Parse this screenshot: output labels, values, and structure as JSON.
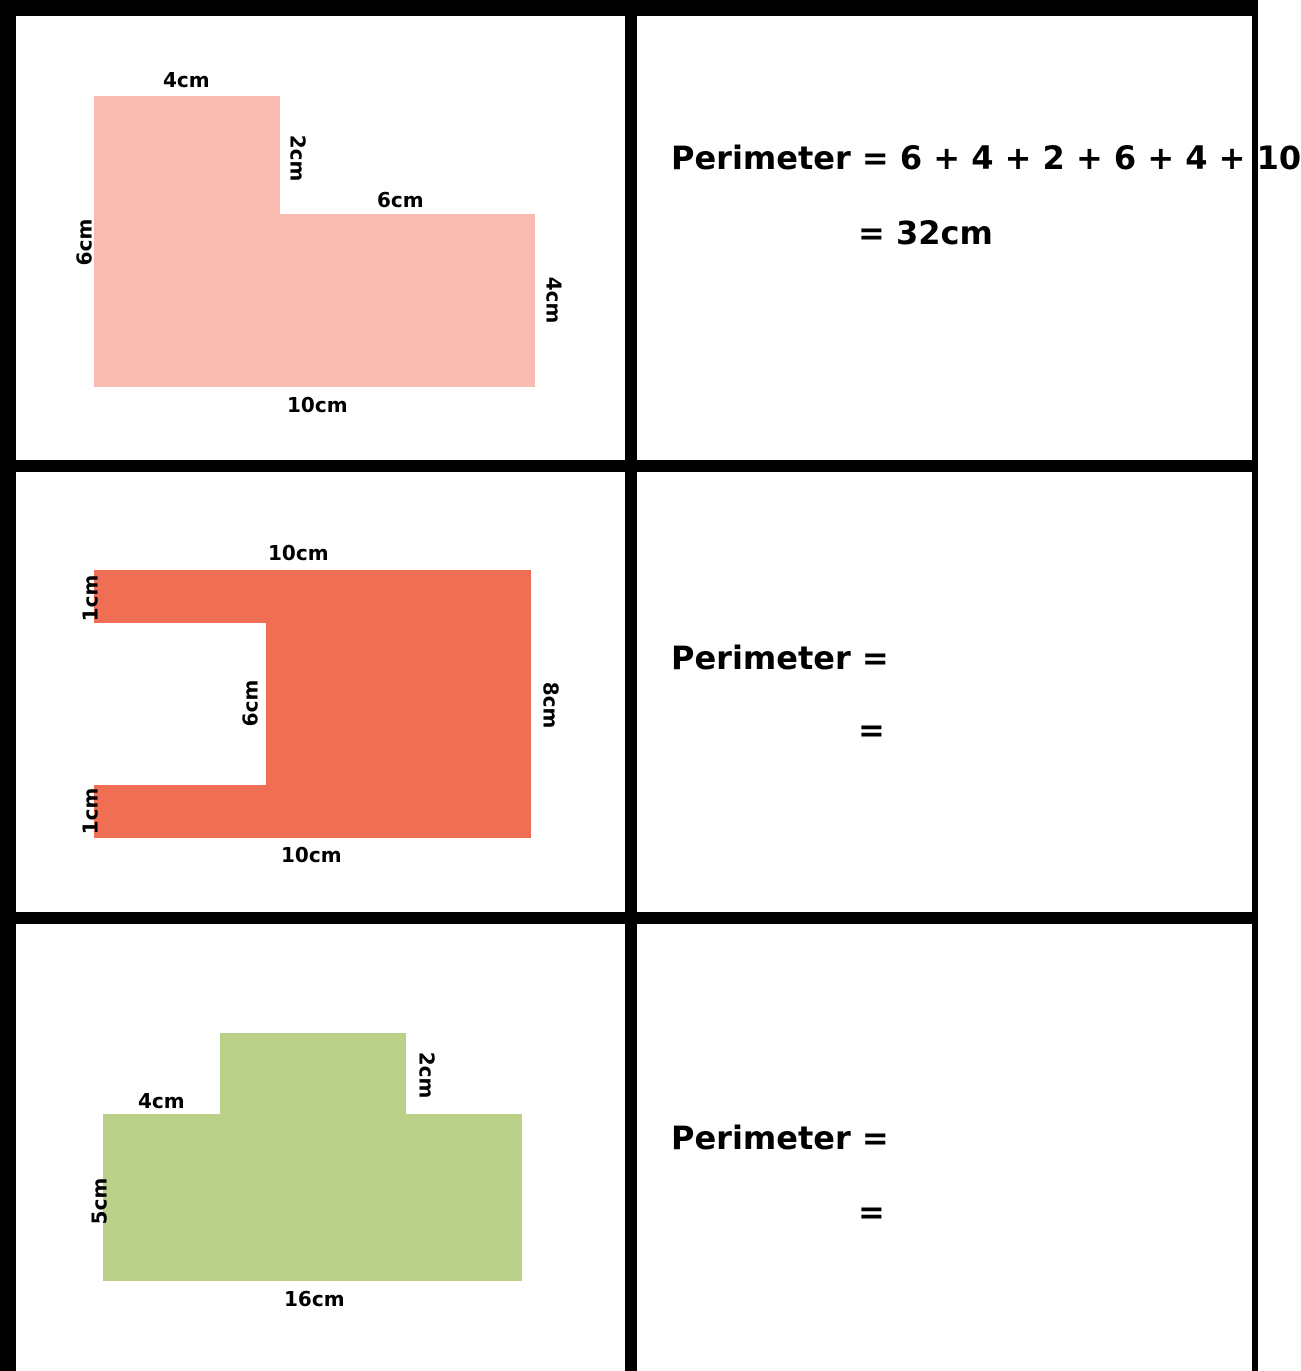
{
  "colors": {
    "grid": "#000000",
    "shape1": "#f7bbb0",
    "shape2": "#f06e53",
    "shape3": "#bbd089"
  },
  "problems": [
    {
      "labels": {
        "top": "4cm",
        "inner_vertical": "2cm",
        "inner_horizontal": "6cm",
        "left": "6cm",
        "right": "4cm",
        "bottom": "10cm"
      },
      "answer": {
        "line1": "Perimeter = 6 + 4 + 2 + 6 + 4 + 10",
        "line2": "= 32cm"
      }
    },
    {
      "labels": {
        "top": "10cm",
        "left_top": "1cm",
        "inner_vertical": "6cm",
        "right": "8cm",
        "left_bottom": "1cm",
        "bottom": "10cm"
      },
      "answer": {
        "line1": "Perimeter =",
        "line2": "="
      }
    },
    {
      "labels": {
        "step": "4cm",
        "inner_vertical": "2cm",
        "left": "5cm",
        "bottom": "16cm"
      },
      "answer": {
        "line1": "Perimeter =",
        "line2": "="
      }
    }
  ]
}
